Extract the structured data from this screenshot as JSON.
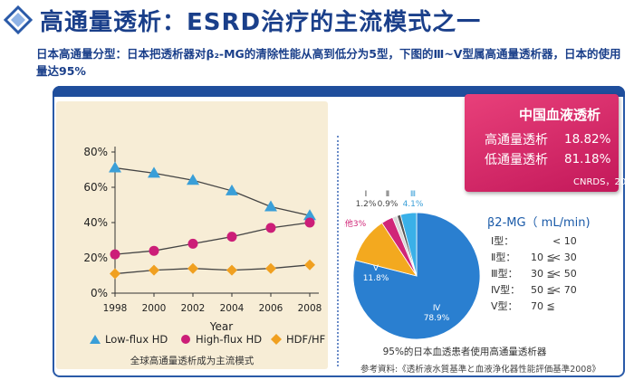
{
  "header": {
    "title": "高通量透析：ESRD治疗的主流模式之一",
    "subtitle": "日本高通量分型：日本把透析器对β₂-MG的清除性能从高到低分为5型，下图的Ⅲ~V型属高通量透析器，日本的使用量达95%"
  },
  "china_box": {
    "heading": "中国血液透析",
    "rows": [
      {
        "label": "高通量透析",
        "value": "18.82%"
      },
      {
        "label": "低通量透析",
        "value": "81.18%"
      }
    ],
    "source": "CNRDS，2010"
  },
  "line_chart_caption": "全球高通量透析成为主流模式",
  "pie_caption": "95%的日本血透患者使用高通量透析器",
  "reference": "参考資料:《透析液水質基準と血液浄化器性能評価基準2008》",
  "b2m_table": {
    "title": "β2-MG（ mL/min)",
    "rows": [
      {
        "type": "Ⅰ型：",
        "op": "",
        "val": "< 10"
      },
      {
        "type": "Ⅱ型：",
        "op": "10 ≦",
        "val": "< 30"
      },
      {
        "type": "Ⅲ型：",
        "op": "30 ≦",
        "val": "< 50"
      },
      {
        "type": "Ⅳ型：",
        "op": "50 ≦",
        "val": "< 70"
      },
      {
        "type": "Ⅴ型：",
        "op": "70 ≦",
        "val": ""
      }
    ]
  },
  "chart_data": [
    {
      "type": "line",
      "xlabel": "Year",
      "ylabel": "",
      "x": [
        1998,
        2000,
        2002,
        2004,
        2006,
        2008
      ],
      "ylim": [
        0,
        80
      ],
      "yticks": [
        "0%",
        "20%",
        "40%",
        "60%",
        "80%"
      ],
      "series": [
        {
          "name": "Low-flux HD",
          "values": [
            71,
            68,
            64,
            58,
            49,
            44
          ],
          "color": "#3a9fd8",
          "marker": "triangle"
        },
        {
          "name": "High-flux HD",
          "values": [
            22,
            24,
            28,
            32,
            37,
            40
          ],
          "color": "#cc1e78",
          "marker": "circle"
        },
        {
          "name": "HDF/HF",
          "values": [
            11,
            13,
            14,
            13,
            14,
            16
          ],
          "color": "#f0a020",
          "marker": "diamond"
        }
      ]
    },
    {
      "type": "pie",
      "slices": [
        {
          "label": "Ⅳ",
          "value": 78.9,
          "text": "Ⅳ\n78.9%",
          "color": "#2a7fd0"
        },
        {
          "label": "Ⅴ",
          "value": 11.8,
          "text": "Ⅴ\n11.8%",
          "color": "#f3a91f"
        },
        {
          "label": "其他3%",
          "value": 3.0,
          "text": "其他3%",
          "color": "#d02678"
        },
        {
          "label": "Ⅰ",
          "value": 1.2,
          "text": "Ⅰ\n1.2%",
          "color": "#d8d8d8"
        },
        {
          "label": "Ⅱ",
          "value": 0.9,
          "text": "Ⅱ\n0.9%",
          "color": "#555555"
        },
        {
          "label": "Ⅲ",
          "value": 4.1,
          "text": "Ⅲ\n4.1%",
          "color": "#3ab0e8"
        }
      ]
    }
  ]
}
